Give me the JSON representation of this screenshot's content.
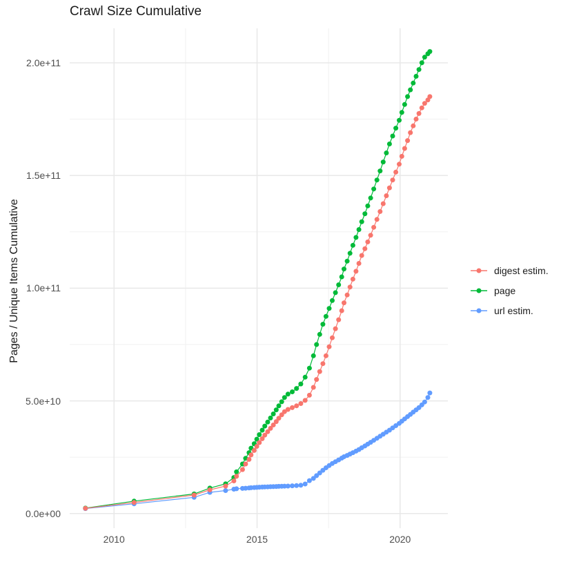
{
  "title": "Crawl Size Cumulative",
  "chart_data": {
    "type": "scatter",
    "title": "Crawl Size Cumulative",
    "xlabel": "",
    "ylabel": "Pages / Unique Items Cumulative",
    "grid": true,
    "legend_position": "right",
    "xlim": [
      2008.45,
      2021.67
    ],
    "ylim": [
      -6500000000.0,
      215300000000.0
    ],
    "x_ticks": [
      {
        "value": 2010,
        "label": "2010"
      },
      {
        "value": 2015,
        "label": "2015"
      },
      {
        "value": 2020,
        "label": "2020"
      }
    ],
    "x_minor_ticks": [
      2012.5,
      2017.5,
      2022.5
    ],
    "y_ticks": [
      {
        "value": 0,
        "label": "0.0e+00"
      },
      {
        "value": 50000000000.0,
        "label": "5.0e+10"
      },
      {
        "value": 100000000000.0,
        "label": "1.0e+11"
      },
      {
        "value": 150000000000.0,
        "label": "1.5e+11"
      },
      {
        "value": 200000000000.0,
        "label": "2.0e+11"
      }
    ],
    "y_minor_ticks": [
      25000000000.0,
      75000000000.0,
      125000000000.0,
      175000000000.0
    ],
    "x_years": [
      2009.0,
      2010.7,
      2012.8,
      2013.35,
      2013.9,
      2014.19,
      2014.28,
      2014.49,
      2014.6,
      2014.72,
      2014.79,
      2014.9,
      2014.99,
      2015.08,
      2015.18,
      2015.27,
      2015.37,
      2015.47,
      2015.57,
      2015.67,
      2015.76,
      2015.86,
      2015.96,
      2016.08,
      2016.23,
      2016.38,
      2016.53,
      2016.68,
      2016.83,
      2016.97,
      2017.08,
      2017.19,
      2017.3,
      2017.41,
      2017.52,
      2017.63,
      2017.74,
      2017.85,
      2017.96,
      2018.04,
      2018.15,
      2018.25,
      2018.35,
      2018.46,
      2018.56,
      2018.66,
      2018.77,
      2018.87,
      2018.97,
      2019.08,
      2019.19,
      2019.3,
      2019.41,
      2019.52,
      2019.63,
      2019.74,
      2019.85,
      2019.97,
      2020.06,
      2020.16,
      2020.26,
      2020.36,
      2020.46,
      2020.56,
      2020.66,
      2020.76,
      2020.86,
      2020.97,
      2021.04
    ],
    "series": [
      {
        "name": "digest estim.",
        "color": "#F8766D",
        "values": [
          2300000000.0,
          4900000000.0,
          8200000000.0,
          10500000000.0,
          12200000000.0,
          14500000000.0,
          16500000000.0,
          19500000000.0,
          22000000000.0,
          24000000000.0,
          26000000000.0,
          28000000000.0,
          29800000000.0,
          31500000000.0,
          33200000000.0,
          34800000000.0,
          36300000000.0,
          37800000000.0,
          39300000000.0,
          40800000000.0,
          42300000000.0,
          43800000000.0,
          45200000000.0,
          46200000000.0,
          47000000000.0,
          47800000000.0,
          48800000000.0,
          50200000000.0,
          52500000000.0,
          56000000000.0,
          59500000000.0,
          63000000000.0,
          66500000000.0,
          70000000000.0,
          74000000000.0,
          78000000000.0,
          82000000000.0,
          86000000000.0,
          90000000000.0,
          93500000000.0,
          97000000000.0,
          100500000000.0,
          104000000000.0,
          107500000000.0,
          111000000000.0,
          114500000000.0,
          117500000000.0,
          120500000000.0,
          123500000000.0,
          127000000000.0,
          130500000000.0,
          134000000000.0,
          137500000000.0,
          141000000000.0,
          144500000000.0,
          148000000000.0,
          151500000000.0,
          155000000000.0,
          158500000000.0,
          162000000000.0,
          165500000000.0,
          169000000000.0,
          172000000000.0,
          175000000000.0,
          177500000000.0,
          180000000000.0,
          182000000000.0,
          183500000000.0,
          185000000000.0
        ]
      },
      {
        "name": "page",
        "color": "#00BA38",
        "values": [
          2400000000.0,
          5500000000.0,
          8700000000.0,
          11300000000.0,
          13200000000.0,
          16000000000.0,
          18500000000.0,
          22000000000.0,
          24500000000.0,
          27000000000.0,
          29000000000.0,
          31000000000.0,
          33000000000.0,
          35000000000.0,
          37000000000.0,
          38800000000.0,
          40600000000.0,
          42400000000.0,
          44200000000.0,
          46000000000.0,
          47800000000.0,
          49600000000.0,
          51500000000.0,
          53000000000.0,
          54000000000.0,
          55500000000.0,
          57500000000.0,
          60500000000.0,
          64500000000.0,
          70000000000.0,
          75000000000.0,
          79500000000.0,
          84000000000.0,
          87500000000.0,
          91000000000.0,
          94500000000.0,
          98000000000.0,
          101500000000.0,
          105000000000.0,
          108500000000.0,
          112000000000.0,
          115500000000.0,
          119000000000.0,
          122500000000.0,
          126000000000.0,
          129500000000.0,
          133000000000.0,
          136500000000.0,
          140000000000.0,
          144000000000.0,
          148000000000.0,
          152000000000.0,
          156000000000.0,
          160000000000.0,
          164000000000.0,
          167500000000.0,
          171000000000.0,
          174500000000.0,
          178000000000.0,
          181500000000.0,
          185000000000.0,
          188000000000.0,
          191000000000.0,
          194000000000.0,
          197000000000.0,
          200000000000.0,
          202500000000.0,
          204000000000.0,
          205000000000.0
        ]
      },
      {
        "name": "url estim.",
        "color": "#619CFF",
        "values": [
          2200000000.0,
          4300000000.0,
          7200000000.0,
          9400000000.0,
          10200000000.0,
          10800000000.0,
          11000000000.0,
          11150000000.0,
          11250000000.0,
          11350000000.0,
          11450000000.0,
          11550000000.0,
          11600000000.0,
          11700000000.0,
          11750000000.0,
          11800000000.0,
          11850000000.0,
          11900000000.0,
          11950000000.0,
          12000000000.0,
          12050000000.0,
          12100000000.0,
          12150000000.0,
          12200000000.0,
          12300000000.0,
          12400000000.0,
          12550000000.0,
          13100000000.0,
          14600000000.0,
          15600000000.0,
          16800000000.0,
          18000000000.0,
          19200000000.0,
          20300000000.0,
          21300000000.0,
          22200000000.0,
          23000000000.0,
          23800000000.0,
          24600000000.0,
          25200000000.0,
          25800000000.0,
          26400000000.0,
          27000000000.0,
          27700000000.0,
          28400000000.0,
          29200000000.0,
          30000000000.0,
          30800000000.0,
          31600000000.0,
          32500000000.0,
          33400000000.0,
          34300000000.0,
          35200000000.0,
          36100000000.0,
          37000000000.0,
          38000000000.0,
          39000000000.0,
          40000000000.0,
          41000000000.0,
          42000000000.0,
          43000000000.0,
          44000000000.0,
          45000000000.0,
          46000000000.0,
          47000000000.0,
          48200000000.0,
          49500000000.0,
          51500000000.0,
          53500000000.0
        ]
      }
    ],
    "colors": {
      "grid_major": "#E8E8E8",
      "grid_minor": "#F2F2F2",
      "tick_text": "#4d4d4d",
      "text": "#1a1a1a",
      "background": "#ffffff"
    }
  }
}
